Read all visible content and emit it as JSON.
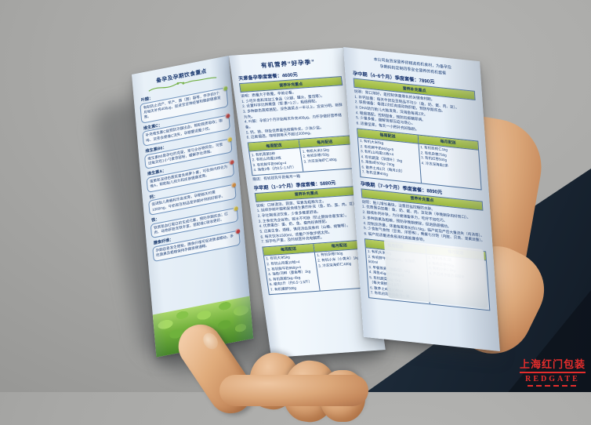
{
  "colors": {
    "accent_green": "#9ab83f",
    "text_navy": "#1c3b6e",
    "paper": "#edf4fb",
    "watermark_red": "#e52d2c"
  },
  "watermark": {
    "line1": "上海红门包装",
    "line2": "REDGATE"
  },
  "brochure": {
    "left_panel": {
      "title": "备孕及孕期饮食重点",
      "sections": [
        {
          "label": "叶酸：",
          "text": "有助防止流产、早产、唇（腭）裂等，怀孕前3个月每天补充400μg，促进宝宝神经管和脑部健康发育。",
          "icon": "lime-icon",
          "icon_color": "#9ec93f"
        },
        {
          "label": "维生素C：",
          "text": "补充维生素C能预防牙龈出血，帮助铁质吸收；咖啡、浓茶会使维C流失，孕期要适量少饮。",
          "icon": "cherry-icon",
          "icon_color": "#c6362c"
        },
        {
          "label": "维生素B6：",
          "text": "维生素B6是孕吐的克星，常与全谷物同在。可尝试每天吃1小勺麦芽胚粉，缓解孕吐烦恼。",
          "icon": "lemon-icon",
          "icon_color": "#e9c832"
        },
        {
          "label": "维生素A：",
          "text": "蛋黄和深绿色蔬菜富含胡萝卜素，可在体内转化为维A，帮助胎儿视力和皮肤健康发育。",
          "icon": "strawberry-icon",
          "icon_color": "#d6402f"
        },
        {
          "label": "钙：",
          "text": "促进胎儿骨骼和牙齿发育，孕期每天约需1000mg，牛奶和豆制品是孕期补钙的好帮手。",
          "icon": "orange-icon",
          "icon_color": "#e8912d"
        },
        {
          "label": "铁：",
          "text": "铁质是血红蛋白的生成元素，预防孕期贫血；红肉、动物肝脏含铁丰富，搭配维C吸收更好。",
          "icon": "pear-icon",
          "icon_color": "#dfc12e"
        },
        {
          "label": "膳食纤维：",
          "text": "孕期容易发生便秘，膳食纤维可促进肠道蠕动，多吃蔬果及粗粮保持孕期排便通畅。",
          "icon": "apple-icon",
          "icon_color": "#cf2b24"
        }
      ]
    },
    "middle_panel": {
      "title": "有机营养“好孕季”",
      "packages": [
        {
          "name": "天意备孕季度套餐：4600元",
          "section_header": "营养补充重点",
          "points": [
            "说明：质量大于数量，孕前必看。",
            "1. 少吃外卖和深加工食品（火腿、罐头、蜜饯等）。",
            "2. 设置科学比例餐盘（荤:素=1:2），粗细搭配。",
            "3. 多种颜色蔬菜搭配，深色蔬菜占一半以上，宜忌分明、新鲜为先。",
            "4. 叶酸：孕前3个月开始每天补充400μg，为怀孕做好营养储备。",
            "5. 钙、铁、锌及优质蛋白按需补充，少油少盐。",
            "6. 远离烟酒，咖啡因每天不超过200mg。"
          ],
          "delivery": {
            "weekly_header": "每周配送",
            "monthly_header": "每月配送",
            "weekly": [
              "1. 有机蔬菜5种",
              "2. 有机山鸡蛋10枚",
              "3. 有机鲜牛奶960g×4",
              "4. 海鱼2条（约0.5~1.5斤）"
            ],
            "monthly": [
              "1. 有机大米2.5kg",
              "2. 有机杂粮750g",
              "3. 冷冻深海虾仁400g"
            ]
          },
          "note": "赠送：有机初乳牛奶每月一箱"
        },
        {
          "name": "孕早期（1~3个月）季度套餐：5880元",
          "section_header": "营养补充重点",
          "points": [
            "说明：口味清淡、蔬菜、荤素及粗粮为主。",
            "1. 延续孕前叶酸和复合维生素的补充（鱼、奶、蛋、肉、豆）。",
            "2. 孕吐期清淡饮食，少食多餐更舒适。",
            "3. 主食优先全谷物，碳水不可缺（防止酮体伤害宝宝）。",
            "4. 优质蛋白：蛋、奶、鱼、瘦肉轮换搭配。",
            "5. 远离生食、酒精，慎用活血类食材（山楂、螃蟹等）。",
            "6. 每天饮水1500ml，适量户外散步晒太阳。",
            "7. 如孕吐严重，及时就医补充电解质。"
          ],
          "delivery": {
            "weekly_header": "每周配送",
            "monthly_header": "每月配送",
            "weekly": [
              "1. 有机大米5kg",
              "2. 有机山鸡蛋10枚×4",
              "3. 有机鲜牛奶960g×4",
              "4. 海鱼/河鲜（墨鱼等）1kg",
              "5. 有机蔬菜5kg~6kg",
              "6. 瘦肉2斤（约0.5~1.5斤）",
              "7. 有机猪肝500g"
            ],
            "monthly": [
              "1. 有机杂粮750g",
              "2. 有机小米（小黄米）1kg",
              "3. 冷冻深海虾仁400g"
            ]
          }
        }
      ]
    },
    "right_panel": {
      "slogan1": "本公司由资深营养师精选有机食材，为备孕及",
      "slogan2": "孕期妈妈定制四季安全营养的有机套餐",
      "packages": [
        {
          "name": "孕中期（4~6个月）季度套餐：7890元",
          "section_header": "营养补充重点",
          "points": [
            "说明：胃口渐好，是控制体重增长的关键食材期。",
            "1. 补钙加量：每天牛奶及豆制品不可少（鱼、奶、蛋、肉、豆）。",
            "2. 铁质储备：每周2次红肉或动物肝脏，预防孕期贫血。",
            "3. DHA助力胎儿大脑发育，深海鱼每周2次。",
            "4. 粗细搭配，控制甜食，预防妊娠糖尿病。",
            "5. 少量多餐，缓解胃部压迫与烧心。",
            "6. 适量坚果，每天一小把补充好脂肪。"
          ],
          "delivery": {
            "weekly_header": "每周配送",
            "monthly_header": "每月配送",
            "weekly": [
              "1. 有机大米5kg",
              "2. 有机鲜牛奶960g×5",
              "3. 有机山鸡蛋10枚×4",
              "4. 有机蔬菜（深绿叶）1kg",
              "5. 海鱼/虾500g~700g",
              "6. 散养土鸡1只（每月2次）",
              "7. 有机坚果400g"
            ],
            "monthly": [
              "1. 有机核桃仁1kg",
              "2. 有机杂粮750g",
              "3. 有机红枣500g",
              "4. 冷冻深海鱼2条"
            ]
          }
        },
        {
          "name": "孕晚期（7~9个月）季度套餐：8890元",
          "section_header": "营养补充重点",
          "points": [
            "说明：胎儿增长最快，注意控盐控糖防水肿。",
            "1. 优质蛋白加量：鱼、奶、蛋、肉、豆轮换（孕晚期孕妈好胃口）。",
            "2. 继续补钙补铁，为分娩储备体力，吃好不如吃巧。",
            "3. 多种蔬果及粗粮，预防孕晚期便秘，促进肠道蠕动。",
            "4. 控制总热量，体重每周增长约0.5kg，临产前及产后大量流失（鸡汤等）。",
            "5. 少食胀气食物（豆类、洋葱等），晚餐七分饱（内脏、贝类、坚果适量）。",
            "6. 临产前适量进食易消化高能量食物。"
          ],
          "delivery": {
            "weekly_header": "每周配送",
            "monthly_header": "每月配送",
            "weekly": [
              "1. 有机大米5kg",
              "2. 有机鲜牛奶960g×5，低脂奶500ml",
              "3. 早餐燕麦（脱脂型）1kg",
              "4. 海鱼45g/d约300g×2",
              "5. 有机蔬菜5kg~6kg",
              "（每天保鲜4~1.5斤）",
              "6. 散养土鸡蛋10枚×4",
              "7. 有机初乳牛奶每月一箱"
            ],
            "monthly": [
              "1. 有机鸡汤1锅",
              "2. 有机红枣500g",
              "3. 有机小米1.5kg",
              "4. 产后月子餐咨询服务"
            ]
          }
        }
      ]
    }
  }
}
